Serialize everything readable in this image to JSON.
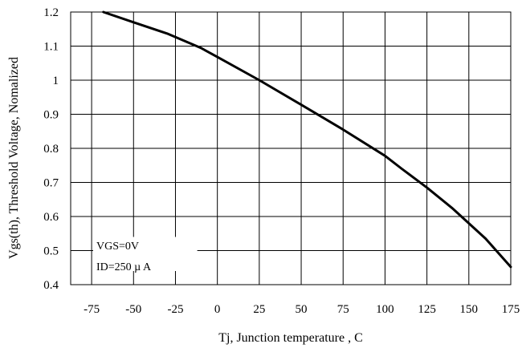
{
  "chart_data": {
    "type": "line",
    "title": "",
    "xlabel": "Tj, Junction temperature , C",
    "ylabel": "Vgs(th), Threshold Voltage, Nomalized",
    "xlim": [
      -87.5,
      175
    ],
    "ylim": [
      0.4,
      1.2
    ],
    "x_ticks": [
      -75,
      -50,
      -25,
      0,
      25,
      50,
      75,
      100,
      125,
      150,
      175
    ],
    "x_tick_labels": [
      "-75",
      "-50",
      "-25",
      "0",
      "25",
      "50",
      "75",
      "100",
      "125",
      "150",
      "175"
    ],
    "y_ticks": [
      0.4,
      0.5,
      0.6,
      0.7,
      0.8,
      0.9,
      1.0,
      1.1,
      1.2
    ],
    "y_tick_labels": [
      "0.4",
      "0.5",
      "0.6",
      "0.7",
      "0.8",
      "0.9",
      "1",
      "1.1",
      "1.2"
    ],
    "grid": true,
    "legend": "none",
    "series": [
      {
        "x": [
          -68,
          -50,
          -30,
          -10,
          0,
          25,
          50,
          75,
          100,
          110,
          125,
          140,
          150,
          160,
          175
        ],
        "y": [
          1.2,
          1.17,
          1.137,
          1.095,
          1.068,
          1.0,
          0.928,
          0.855,
          0.778,
          0.74,
          0.685,
          0.625,
          0.58,
          0.535,
          0.452
        ],
        "color": "#000000"
      }
    ],
    "annotations": [
      "VGS=0V",
      "ID=250 µ A"
    ]
  }
}
